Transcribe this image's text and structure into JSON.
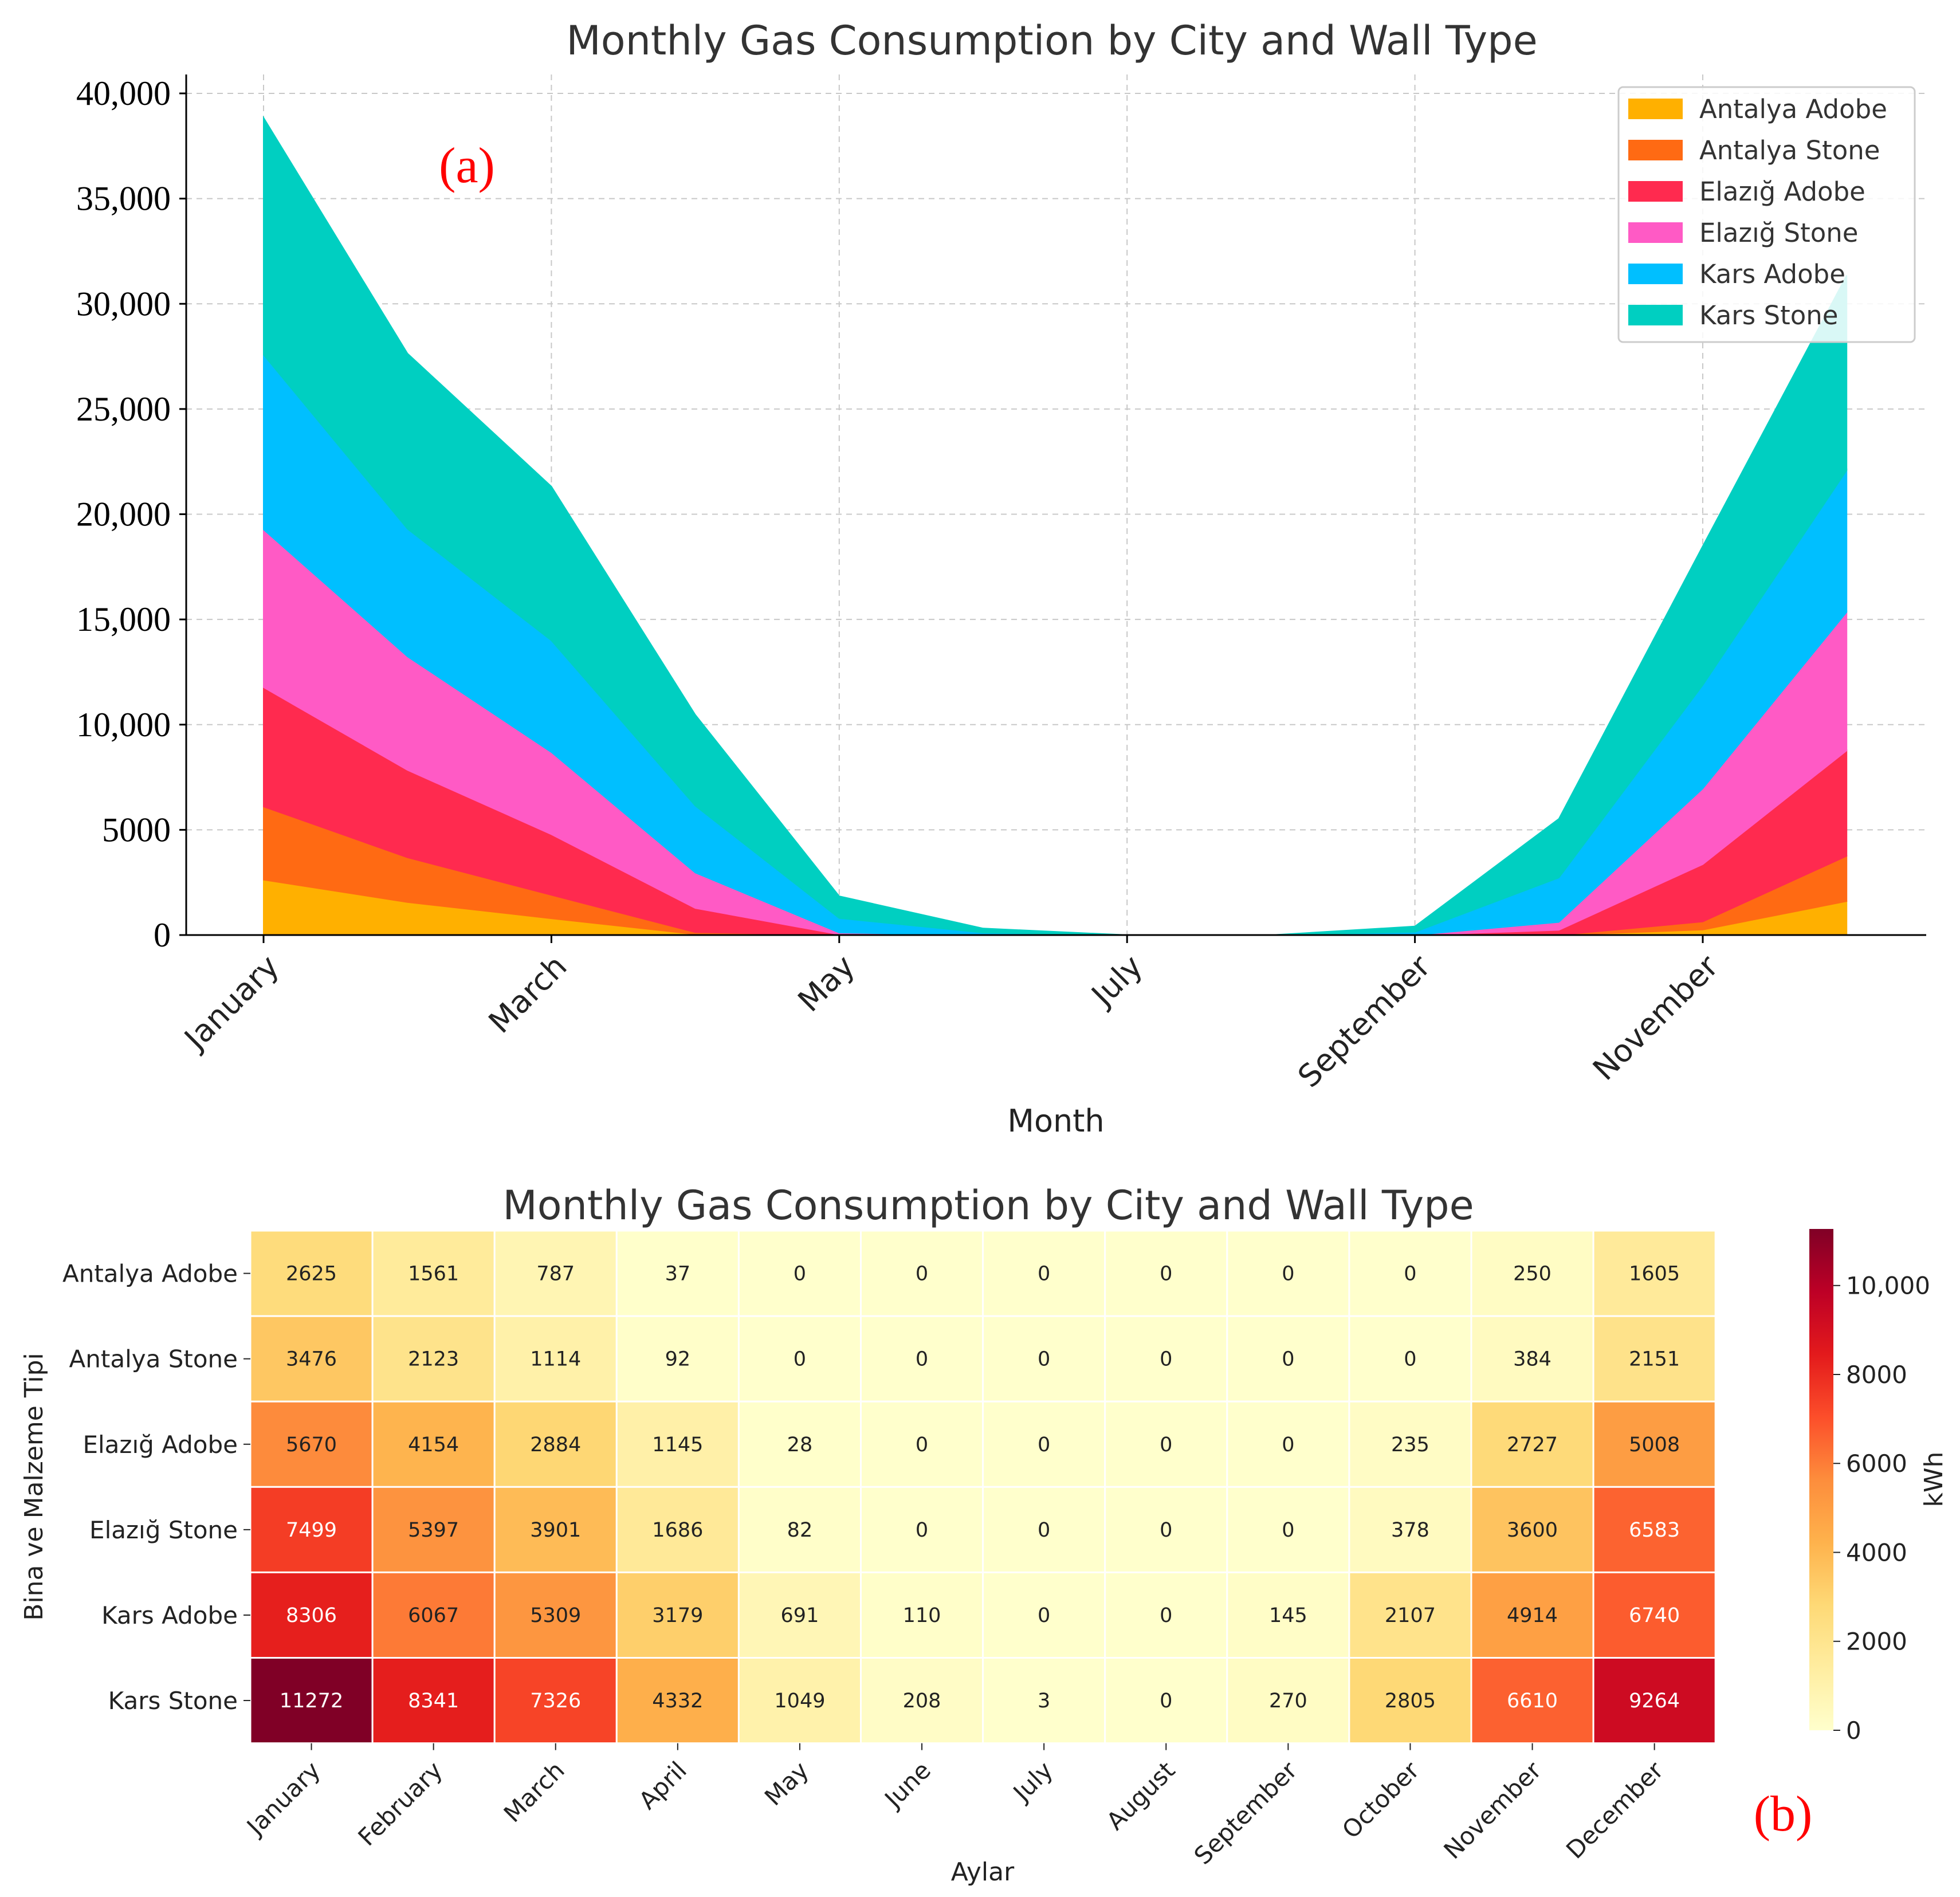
{
  "chart_data": [
    {
      "type": "area",
      "stacked": true,
      "title": "Monthly Gas Consumption by City and Wall Type",
      "panel_label": "(a)",
      "xlabel": "Month",
      "ylabel": "",
      "categories": [
        "January",
        "February",
        "March",
        "April",
        "May",
        "June",
        "July",
        "August",
        "September",
        "October",
        "November",
        "December"
      ],
      "x_tick_labels": [
        "January",
        "March",
        "May",
        "July",
        "September",
        "November"
      ],
      "y_ticks": [
        0,
        5000,
        10000,
        15000,
        20000,
        25000,
        30000,
        35000,
        40000
      ],
      "y_tick_labels": [
        "0",
        "5000",
        "10,000",
        "15,000",
        "20,000",
        "25,000",
        "30,000",
        "35,000",
        "40,000"
      ],
      "ylim": [
        0,
        41000
      ],
      "grid": true,
      "legend_position": "top-right",
      "series": [
        {
          "name": "Antalya Adobe",
          "color": "#FFB000",
          "values": [
            2625,
            1561,
            787,
            37,
            0,
            0,
            0,
            0,
            0,
            0,
            250,
            1605
          ]
        },
        {
          "name": "Antalya Stone",
          "color": "#FF6A13",
          "values": [
            3476,
            2123,
            1114,
            92,
            0,
            0,
            0,
            0,
            0,
            0,
            384,
            2151
          ]
        },
        {
          "name": "Elazığ Adobe",
          "color": "#FF2A4F",
          "values": [
            5670,
            4154,
            2884,
            1145,
            28,
            0,
            0,
            0,
            0,
            235,
            2727,
            5008
          ]
        },
        {
          "name": "Elazığ Stone",
          "color": "#FF5AC5",
          "values": [
            7499,
            5397,
            3901,
            1686,
            82,
            0,
            0,
            0,
            0,
            378,
            3600,
            6583
          ]
        },
        {
          "name": "Kars Adobe",
          "color": "#00BFFF",
          "values": [
            8306,
            6067,
            5309,
            3179,
            691,
            110,
            0,
            0,
            145,
            2107,
            4914,
            6740
          ]
        },
        {
          "name": "Kars Stone",
          "color": "#00CFC1",
          "values": [
            11272,
            8341,
            7326,
            4332,
            1049,
            208,
            3,
            0,
            270,
            2805,
            6610,
            9264
          ]
        }
      ]
    },
    {
      "type": "heatmap",
      "title": "Monthly Gas Consumption by City and Wall Type",
      "panel_label": "(b)",
      "xlabel": "Aylar",
      "ylabel": "Bina ve Malzeme Tipi",
      "colorbar_label": "kWh",
      "colorbar_ticks": [
        0,
        2000,
        4000,
        6000,
        8000,
        10000
      ],
      "colorbar_tick_labels": [
        "0",
        "2000",
        "4000",
        "6000",
        "8000",
        "10,000"
      ],
      "value_range": [
        0,
        11272
      ],
      "columns": [
        "January",
        "February",
        "March",
        "April",
        "May",
        "June",
        "July",
        "August",
        "September",
        "October",
        "November",
        "December"
      ],
      "rows": [
        "Antalya Adobe",
        "Antalya Stone",
        "Elazığ Adobe",
        "Elazığ Stone",
        "Kars Adobe",
        "Kars Stone"
      ],
      "values": [
        [
          2625,
          1561,
          787,
          37,
          0,
          0,
          0,
          0,
          0,
          0,
          250,
          1605
        ],
        [
          3476,
          2123,
          1114,
          92,
          0,
          0,
          0,
          0,
          0,
          0,
          384,
          2151
        ],
        [
          5670,
          4154,
          2884,
          1145,
          28,
          0,
          0,
          0,
          0,
          235,
          2727,
          5008
        ],
        [
          7499,
          5397,
          3901,
          1686,
          82,
          0,
          0,
          0,
          0,
          378,
          3600,
          6583
        ],
        [
          8306,
          6067,
          5309,
          3179,
          691,
          110,
          0,
          0,
          145,
          2107,
          4914,
          6740
        ],
        [
          11272,
          8341,
          7326,
          4332,
          1049,
          208,
          3,
          0,
          270,
          2805,
          6610,
          9264
        ]
      ]
    }
  ]
}
